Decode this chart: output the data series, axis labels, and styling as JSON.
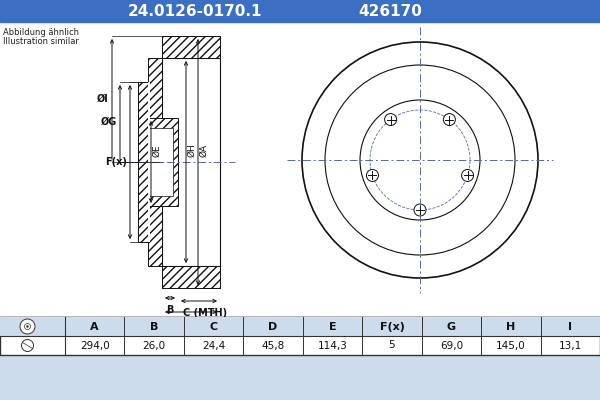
{
  "title_part": "24.0126-0170.1",
  "title_code": "426170",
  "header_bg": "#3a6fc4",
  "header_text_color": "#ffffff",
  "body_bg": "#cddcec",
  "drawing_bg": "#ffffff",
  "table_bg": "#ffffff",
  "table_header_bg": "#cddcec",
  "note_line1": "Abbildung ähnlich",
  "note_line2": "Illustration similar",
  "col_headers": [
    "A",
    "B",
    "C",
    "D",
    "E",
    "F(x)",
    "G",
    "H",
    "I"
  ],
  "col_values": [
    "294,0",
    "26,0",
    "24,4",
    "45,8",
    "114,3",
    "5",
    "69,0",
    "145,0",
    "13,1"
  ],
  "line_color": "#111111",
  "hatch_color": "#333333",
  "dim_line_color": "#111111",
  "crosshair_color": "#5566aa"
}
